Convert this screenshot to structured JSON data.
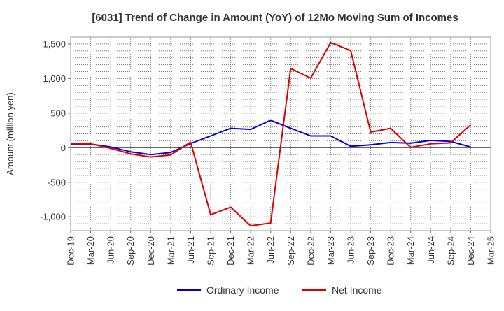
{
  "chart_data": {
    "type": "line",
    "title": "[6031]  Trend of Change in Amount (YoY) of 12Mo Moving Sum of Incomes",
    "ylabel": "Amount (million yen)",
    "xlabel": "",
    "ylim": [
      -1200,
      1600
    ],
    "yticks": [
      1500,
      1000,
      500,
      0,
      -500,
      -1000
    ],
    "ytick_labels": [
      "1,500",
      "1,000",
      "500",
      "0",
      "-500",
      "-1,000"
    ],
    "categories": [
      "Dec-19",
      "Mar-20",
      "Jun-20",
      "Sep-20",
      "Dec-20",
      "Mar-21",
      "Jun-21",
      "Sep-21",
      "Dec-21",
      "Mar-22",
      "Jun-22",
      "Sep-22",
      "Dec-22",
      "Mar-23",
      "Jun-23",
      "Sep-23",
      "Dec-23",
      "Mar-24",
      "Jun-24",
      "Sep-24",
      "Dec-24",
      "Mar-25"
    ],
    "grid": true,
    "legend_position": "bottom",
    "series": [
      {
        "name": "Ordinary Income",
        "color": "#0000dd",
        "values": [
          50,
          50,
          10,
          -60,
          -100,
          -70,
          60,
          170,
          280,
          265,
          395,
          280,
          170,
          170,
          20,
          40,
          75,
          65,
          105,
          90,
          10,
          null
        ]
      },
      {
        "name": "Net Income",
        "color": "#dd0000",
        "values": [
          55,
          55,
          -10,
          -90,
          -135,
          -105,
          80,
          -970,
          -860,
          -1130,
          -1090,
          1145,
          1005,
          1520,
          1405,
          225,
          280,
          5,
          55,
          70,
          330,
          null
        ]
      }
    ]
  }
}
